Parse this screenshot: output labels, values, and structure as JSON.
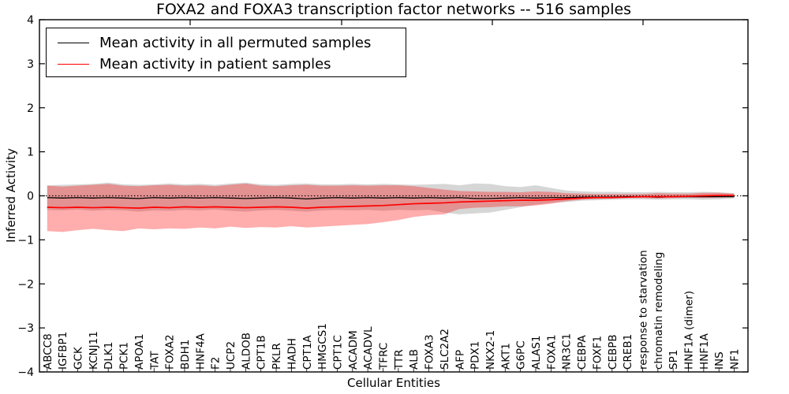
{
  "chart_data": {
    "type": "line",
    "title": "FOXA2 and FOXA3 transcription factor networks -- 516 samples",
    "xlabel": "Cellular Entities",
    "ylabel": "Inferred Activity",
    "ylim": [
      -4,
      4
    ],
    "ytick_labels": [
      "4",
      "3",
      "2",
      "1",
      "0",
      "−1",
      "−2",
      "−3",
      "−4"
    ],
    "ytick_values": [
      4,
      3,
      2,
      1,
      0,
      -1,
      -2,
      -3,
      -4
    ],
    "grid": false,
    "legend_position": "upper left",
    "zero_line_style": "dotted",
    "categories": [
      "ABCC8",
      "IGFBP1",
      "GCK",
      "KCNJ11",
      "DLK1",
      "PCK1",
      "APOA1",
      "TAT",
      "FOXA2",
      "BDH1",
      "HNF4A",
      "F2",
      "UCP2",
      "ALDOB",
      "CPT1B",
      "PKLR",
      "HADH",
      "CPT1A",
      "HMGCS1",
      "CPT1C",
      "ACADM",
      "ACADVL",
      "TFRC",
      "TTR",
      "ALB",
      "FOXA3",
      "SLC2A2",
      "AFP",
      "PDX1",
      "NKX2-1",
      "AKT1",
      "G6PC",
      "ALAS1",
      "FOXA1",
      "NR3C1",
      "CEBPA",
      "FOXF1",
      "CEBPB",
      "CREB1",
      "response to starvation",
      "chromatin remodeling",
      "SP1",
      "HNF1A (dimer)",
      "HNF1A",
      "INS",
      "NF1"
    ],
    "series": [
      {
        "name": "Mean activity in all permuted samples",
        "color": "#000000",
        "values": [
          -0.04,
          -0.05,
          -0.04,
          -0.05,
          -0.04,
          -0.05,
          -0.06,
          -0.04,
          -0.05,
          -0.04,
          -0.05,
          -0.04,
          -0.05,
          -0.06,
          -0.05,
          -0.04,
          -0.05,
          -0.07,
          -0.05,
          -0.04,
          -0.05,
          -0.04,
          -0.05,
          -0.04,
          -0.05,
          -0.04,
          -0.05,
          -0.04,
          -0.06,
          -0.06,
          -0.05,
          -0.04,
          -0.05,
          -0.04,
          -0.04,
          -0.03,
          -0.03,
          -0.03,
          -0.02,
          -0.02,
          -0.03,
          -0.02,
          -0.02,
          -0.02,
          -0.02,
          -0.02
        ]
      },
      {
        "name": "Mean activity in patient samples",
        "color": "#ff0000",
        "values": [
          -0.26,
          -0.27,
          -0.26,
          -0.27,
          -0.26,
          -0.27,
          -0.28,
          -0.26,
          -0.27,
          -0.25,
          -0.26,
          -0.25,
          -0.26,
          -0.27,
          -0.26,
          -0.25,
          -0.26,
          -0.28,
          -0.26,
          -0.25,
          -0.24,
          -0.23,
          -0.22,
          -0.2,
          -0.18,
          -0.17,
          -0.16,
          -0.14,
          -0.13,
          -0.12,
          -0.11,
          -0.1,
          -0.1,
          -0.09,
          -0.07,
          -0.05,
          -0.04,
          -0.04,
          -0.03,
          -0.02,
          -0.02,
          -0.02,
          -0.01,
          0.0,
          0.01,
          0.01
        ]
      }
    ],
    "bands": [
      {
        "name": "permuted-samples-band",
        "color": "rgba(0,0,0,0.16)",
        "upper": [
          0.24,
          0.25,
          0.26,
          0.27,
          0.3,
          0.26,
          0.25,
          0.26,
          0.28,
          0.26,
          0.27,
          0.25,
          0.28,
          0.3,
          0.26,
          0.25,
          0.27,
          0.28,
          0.26,
          0.26,
          0.27,
          0.26,
          0.27,
          0.26,
          0.25,
          0.26,
          0.27,
          0.24,
          0.28,
          0.27,
          0.22,
          0.2,
          0.24,
          0.18,
          0.12,
          0.1,
          0.09,
          0.09,
          0.08,
          0.08,
          0.09,
          0.08,
          0.08,
          0.09,
          0.08,
          0.06
        ],
        "lower": [
          -0.32,
          -0.33,
          -0.31,
          -0.34,
          -0.32,
          -0.33,
          -0.36,
          -0.33,
          -0.34,
          -0.32,
          -0.33,
          -0.31,
          -0.34,
          -0.36,
          -0.33,
          -0.32,
          -0.34,
          -0.36,
          -0.33,
          -0.32,
          -0.33,
          -0.32,
          -0.34,
          -0.32,
          -0.33,
          -0.32,
          -0.38,
          -0.42,
          -0.4,
          -0.38,
          -0.32,
          -0.26,
          -0.2,
          -0.16,
          -0.14,
          -0.11,
          -0.1,
          -0.09,
          -0.08,
          -0.08,
          -0.09,
          -0.08,
          -0.08,
          -0.09,
          -0.08,
          -0.06
        ]
      },
      {
        "name": "patient-samples-band",
        "color": "rgba(255,0,0,0.32)",
        "upper": [
          0.23,
          0.21,
          0.23,
          0.25,
          0.27,
          0.23,
          0.22,
          0.24,
          0.25,
          0.23,
          0.24,
          0.22,
          0.25,
          0.28,
          0.23,
          0.22,
          0.24,
          0.25,
          0.23,
          0.23,
          0.24,
          0.23,
          0.24,
          0.24,
          0.22,
          0.18,
          0.14,
          0.11,
          0.1,
          0.09,
          0.09,
          0.08,
          0.1,
          0.09,
          0.06,
          0.05,
          0.04,
          0.04,
          0.04,
          0.04,
          0.06,
          0.05,
          0.05,
          0.07,
          0.07,
          0.05
        ],
        "lower": [
          -0.8,
          -0.82,
          -0.78,
          -0.75,
          -0.78,
          -0.8,
          -0.74,
          -0.76,
          -0.74,
          -0.75,
          -0.72,
          -0.74,
          -0.7,
          -0.73,
          -0.71,
          -0.72,
          -0.69,
          -0.72,
          -0.7,
          -0.68,
          -0.66,
          -0.64,
          -0.6,
          -0.55,
          -0.48,
          -0.44,
          -0.42,
          -0.3,
          -0.27,
          -0.26,
          -0.24,
          -0.24,
          -0.22,
          -0.18,
          -0.12,
          -0.09,
          -0.07,
          -0.06,
          -0.05,
          -0.05,
          -0.06,
          -0.05,
          -0.04,
          -0.05,
          -0.04,
          -0.03
        ]
      }
    ]
  }
}
